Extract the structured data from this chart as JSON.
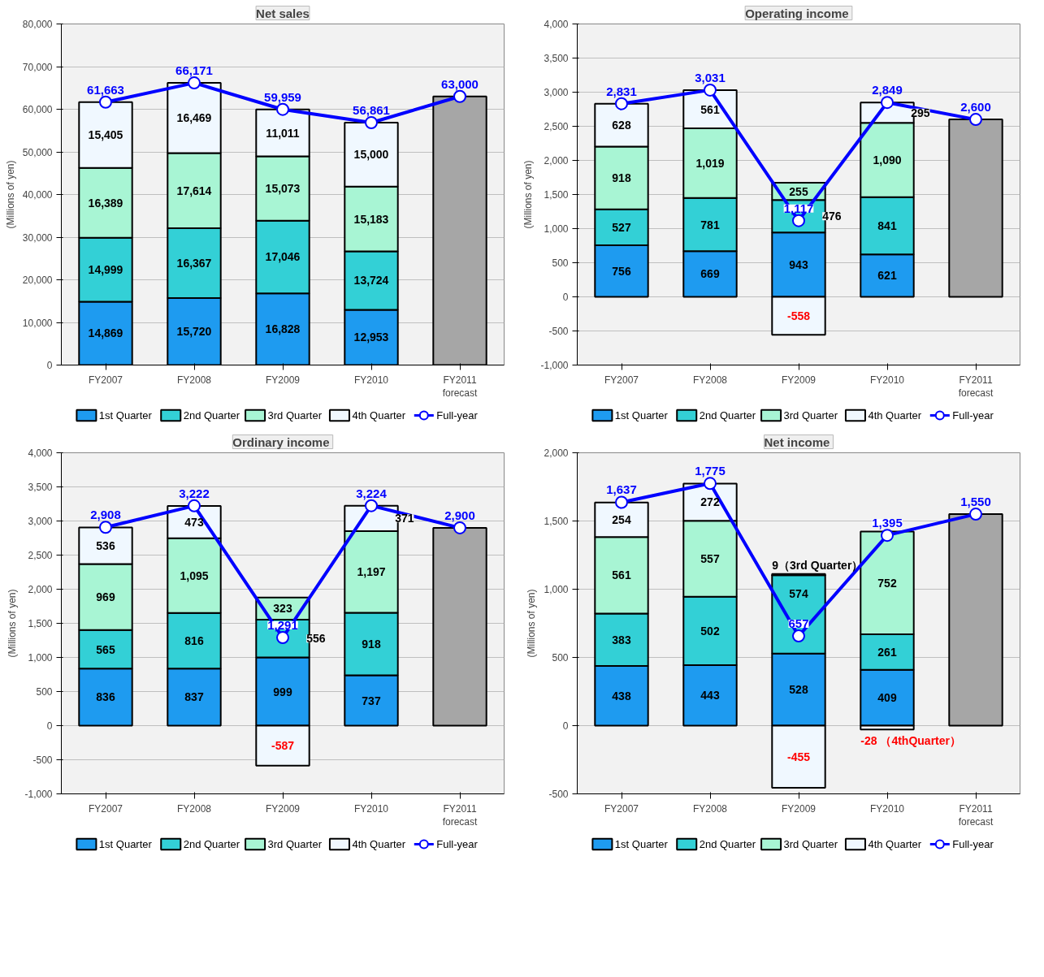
{
  "chart_data": [
    {
      "type": "bar",
      "stacked": true,
      "title": "Net sales",
      "ylabel": "(Millions of yen)",
      "categories": [
        "FY2007",
        "FY2008",
        "FY2009",
        "FY2010",
        "FY2011\nforecast"
      ],
      "ylim": [
        0,
        80000
      ],
      "yticks": [
        0,
        {
          "value": 10000,
          "label": "10,000"
        },
        {
          "value": 20000,
          "label": "20,000"
        },
        {
          "value": 30000,
          "label": "30,000"
        },
        {
          "value": 40000,
          "label": "40,000"
        },
        {
          "value": 50000,
          "label": "50,000"
        },
        {
          "value": 60000,
          "label": "60,000"
        },
        {
          "value": 70000,
          "label": "70,000"
        },
        {
          "value": 80000,
          "label": "80,000"
        }
      ],
      "grid": "y",
      "legend": "bottom",
      "marker": "circle",
      "series": [
        {
          "name": "1st Quarter",
          "color": "#1e9bf0",
          "values": [
            14869,
            15720,
            16828,
            12953,
            null
          ],
          "value_labels": [
            "14,869",
            "15,720",
            "16,828",
            "12,953",
            null
          ]
        },
        {
          "name": "2nd Quarter",
          "color": "#33d0d6",
          "values": [
            14999,
            16367,
            17046,
            13724,
            null
          ],
          "value_labels": [
            "14,999",
            "16,367",
            "17,046",
            "13,724",
            null
          ]
        },
        {
          "name": "3rd Quarter",
          "color": "#a8f5d4",
          "values": [
            16389,
            17614,
            15073,
            15183,
            null
          ],
          "value_labels": [
            "16,389",
            "17,614",
            "15,073",
            "15,183",
            null
          ]
        },
        {
          "name": "4th Quarter",
          "color": "#f0f8ff",
          "values": [
            15405,
            16469,
            11011,
            15000,
            null
          ],
          "value_labels": [
            "15,405",
            "16,469",
            "11,011",
            "15,000",
            null
          ]
        },
        {
          "color": "#a6a6a6",
          "values": [
            null,
            null,
            null,
            null,
            63000
          ]
        },
        {
          "name": "Full-year",
          "type": "line",
          "color": "#0000ff",
          "values": [
            61663,
            66171,
            59959,
            56861,
            63000
          ],
          "value_labels": [
            "61,663",
            "66,171",
            "59,959",
            "56,861",
            "63,000"
          ]
        }
      ]
    },
    {
      "type": "bar",
      "stacked": true,
      "title": "Operating  income",
      "ylabel": "(Millions of yen)",
      "categories": [
        "FY2007",
        "FY2008",
        "FY2009",
        "FY2010",
        "FY2011\nforecast"
      ],
      "ylim": [
        -1000,
        4000
      ],
      "yticks": [
        {
          "value": -1000,
          "label": "-1,000"
        },
        -500,
        0,
        500,
        {
          "value": 1000,
          "label": "1,000"
        },
        {
          "value": 1500,
          "label": "1,500"
        },
        {
          "value": 2000,
          "label": "2,000"
        },
        {
          "value": 2500,
          "label": "2,500"
        },
        {
          "value": 3000,
          "label": "3,000"
        },
        {
          "value": 3500,
          "label": "3,500"
        },
        {
          "value": 4000,
          "label": "4,000"
        }
      ],
      "grid": "y",
      "legend": "bottom",
      "marker": "circle",
      "series": [
        {
          "name": "1st Quarter",
          "color": "#1e9bf0",
          "values": [
            756,
            669,
            943,
            621,
            null
          ],
          "value_labels": [
            "756",
            "669",
            "943",
            "621",
            null
          ]
        },
        {
          "name": "2nd Quarter",
          "color": "#33d0d6",
          "values": [
            527,
            781,
            476,
            841,
            null
          ],
          "value_labels": [
            "527",
            "781",
            "476",
            "841",
            null
          ]
        },
        {
          "name": "3rd Quarter",
          "color": "#a8f5d4",
          "values": [
            918,
            1019,
            255,
            1090,
            null
          ],
          "value_labels": [
            "918",
            "1,019",
            "255",
            "1,090",
            null
          ]
        },
        {
          "name": "4th Quarter",
          "color": "#f0f8ff",
          "values": [
            628,
            561,
            -558,
            295,
            null
          ],
          "value_labels": [
            "628",
            "561",
            "-558",
            "295",
            null
          ]
        },
        {
          "color": "#a6a6a6",
          "values": [
            null,
            null,
            null,
            null,
            2600
          ]
        },
        {
          "name": "Full-year",
          "type": "line",
          "color": "#0000ff",
          "values": [
            2831,
            3031,
            1117,
            2849,
            2600
          ],
          "value_labels": [
            "2,831",
            "3,031",
            "1,117",
            "2,849",
            "2,600"
          ]
        }
      ]
    },
    {
      "type": "bar",
      "stacked": true,
      "title": "Ordinary  income",
      "ylabel": "(Millions of yen)",
      "categories": [
        "FY2007",
        "FY2008",
        "FY2009",
        "FY2010",
        "FY2011\nforecast"
      ],
      "ylim": [
        -1000,
        4000
      ],
      "yticks": [
        {
          "value": -1000,
          "label": "-1,000"
        },
        -500,
        0,
        500,
        {
          "value": 1000,
          "label": "1,000"
        },
        {
          "value": 1500,
          "label": "1,500"
        },
        {
          "value": 2000,
          "label": "2,000"
        },
        {
          "value": 2500,
          "label": "2,500"
        },
        {
          "value": 3000,
          "label": "3,000"
        },
        {
          "value": 3500,
          "label": "3,500"
        },
        {
          "value": 4000,
          "label": "4,000"
        }
      ],
      "grid": "y",
      "legend": "bottom",
      "marker": "circle",
      "series": [
        {
          "name": "1st Quarter",
          "color": "#1e9bf0",
          "values": [
            836,
            837,
            999,
            737,
            null
          ],
          "value_labels": [
            "836",
            "837",
            "999",
            "737",
            null
          ]
        },
        {
          "name": "2nd Quarter",
          "color": "#33d0d6",
          "values": [
            565,
            816,
            556,
            918,
            null
          ],
          "value_labels": [
            "565",
            "816",
            "556",
            "918",
            null
          ]
        },
        {
          "name": "3rd Quarter",
          "color": "#a8f5d4",
          "values": [
            969,
            1095,
            323,
            1197,
            null
          ],
          "value_labels": [
            "969",
            "1,095",
            "323",
            "1,197",
            null
          ]
        },
        {
          "name": "4th Quarter",
          "color": "#f0f8ff",
          "values": [
            536,
            473,
            -587,
            371,
            null
          ],
          "value_labels": [
            "536",
            "473",
            "-587",
            "371",
            null
          ]
        },
        {
          "color": "#a6a6a6",
          "values": [
            null,
            null,
            null,
            null,
            2900
          ]
        },
        {
          "name": "Full-year",
          "type": "line",
          "color": "#0000ff",
          "values": [
            2908,
            3222,
            1291,
            3224,
            2900
          ],
          "value_labels": [
            "2,908",
            "3,222",
            "1,291",
            "3,224",
            "2,900"
          ]
        }
      ]
    },
    {
      "type": "bar",
      "stacked": true,
      "title": "Net  income",
      "ylabel": "(Millions of yen)",
      "categories": [
        "FY2007",
        "FY2008",
        "FY2009",
        "FY2010",
        "FY2011\nforecast"
      ],
      "ylim": [
        -500,
        2000
      ],
      "yticks": [
        -500,
        0,
        500,
        {
          "value": 1000,
          "label": "1,000"
        },
        {
          "value": 1500,
          "label": "1,500"
        },
        {
          "value": 2000,
          "label": "2,000"
        }
      ],
      "grid": "y",
      "legend": "bottom",
      "marker": "circle",
      "series": [
        {
          "name": "1st Quarter",
          "color": "#1e9bf0",
          "values": [
            438,
            443,
            528,
            409,
            null
          ],
          "value_labels": [
            "438",
            "443",
            "528",
            "409",
            null
          ]
        },
        {
          "name": "2nd Quarter",
          "color": "#33d0d6",
          "values": [
            383,
            502,
            574,
            261,
            null
          ],
          "value_labels": [
            "383",
            "502",
            "574",
            "261",
            null
          ]
        },
        {
          "name": "3rd Quarter",
          "color": "#a8f5d4",
          "values": [
            561,
            557,
            9,
            752,
            null
          ],
          "value_labels": [
            "561",
            "557",
            "9（3rd Quarter）",
            "752",
            null
          ]
        },
        {
          "name": "4th Quarter",
          "color": "#f0f8ff",
          "values": [
            254,
            272,
            -455,
            -28,
            null
          ],
          "value_labels": [
            "254",
            "272",
            "-455",
            "-28 （4thQuarter）",
            null
          ]
        },
        {
          "color": "#a6a6a6",
          "values": [
            null,
            null,
            null,
            null,
            1550
          ]
        },
        {
          "name": "Full-year",
          "type": "line",
          "color": "#0000ff",
          "values": [
            1637,
            1775,
            657,
            1395,
            1550
          ],
          "value_labels": [
            "1,637",
            "1,775",
            "657",
            "1,395",
            "1,550"
          ]
        }
      ]
    }
  ]
}
